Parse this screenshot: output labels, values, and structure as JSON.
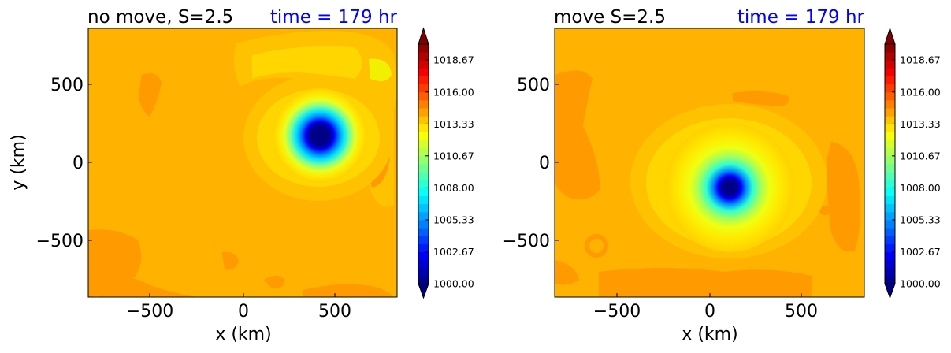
{
  "colors": {
    "background_level": "#ffb300",
    "time_text": "#0000ff",
    "colormap": [
      "#00007f",
      "#0000ff",
      "#007fff",
      "#00ffff",
      "#7fff7f",
      "#ffff00",
      "#ff7f00",
      "#ff0000",
      "#7f0000"
    ]
  },
  "chart_data": [
    {
      "type": "heatmap",
      "title": "no move, S=2.5",
      "time_label": "time = 179 hr",
      "xlabel": "x (km)",
      "ylabel": "y (km)",
      "xlim": [
        -850,
        850
      ],
      "ylim": [
        -850,
        850
      ],
      "xticks": [
        -500,
        0,
        500
      ],
      "yticks": [
        -500,
        0,
        500
      ],
      "xtick_labels": [
        "−500",
        "0",
        "500"
      ],
      "ytick_labels": [
        "−500",
        "0",
        "500"
      ],
      "center": {
        "x": 430,
        "y": 170
      },
      "min_value": 1000.0,
      "colorbar": {
        "vmin": 1000.0,
        "vmax": 1020.0,
        "extend": "both",
        "ticks": [
          1000.0,
          1002.67,
          1005.33,
          1008.0,
          1010.67,
          1013.33,
          1016.0,
          1018.67
        ],
        "tick_labels": [
          "1000.00",
          "1002.67",
          "1005.33",
          "1008.00",
          "1010.67",
          "1013.33",
          "1016.00",
          "1018.67"
        ]
      }
    },
    {
      "type": "heatmap",
      "title": "move S=2.5",
      "time_label": "time = 179 hr",
      "xlabel": "x (km)",
      "ylabel": "",
      "xlim": [
        -850,
        850
      ],
      "ylim": [
        -850,
        850
      ],
      "xticks": [
        -500,
        0,
        500
      ],
      "yticks": [
        -500,
        0,
        500
      ],
      "xtick_labels": [
        "−500",
        "0",
        "500"
      ],
      "ytick_labels": [
        "−500",
        "0",
        "500"
      ],
      "center": {
        "x": 110,
        "y": -150
      },
      "min_value": 1000.0,
      "colorbar": {
        "vmin": 1000.0,
        "vmax": 1020.0,
        "extend": "both",
        "ticks": [
          1000.0,
          1002.67,
          1005.33,
          1008.0,
          1010.67,
          1013.33,
          1016.0,
          1018.67
        ],
        "tick_labels": [
          "1000.00",
          "1002.67",
          "1005.33",
          "1008.00",
          "1010.67",
          "1013.33",
          "1016.00",
          "1018.67"
        ]
      }
    }
  ]
}
